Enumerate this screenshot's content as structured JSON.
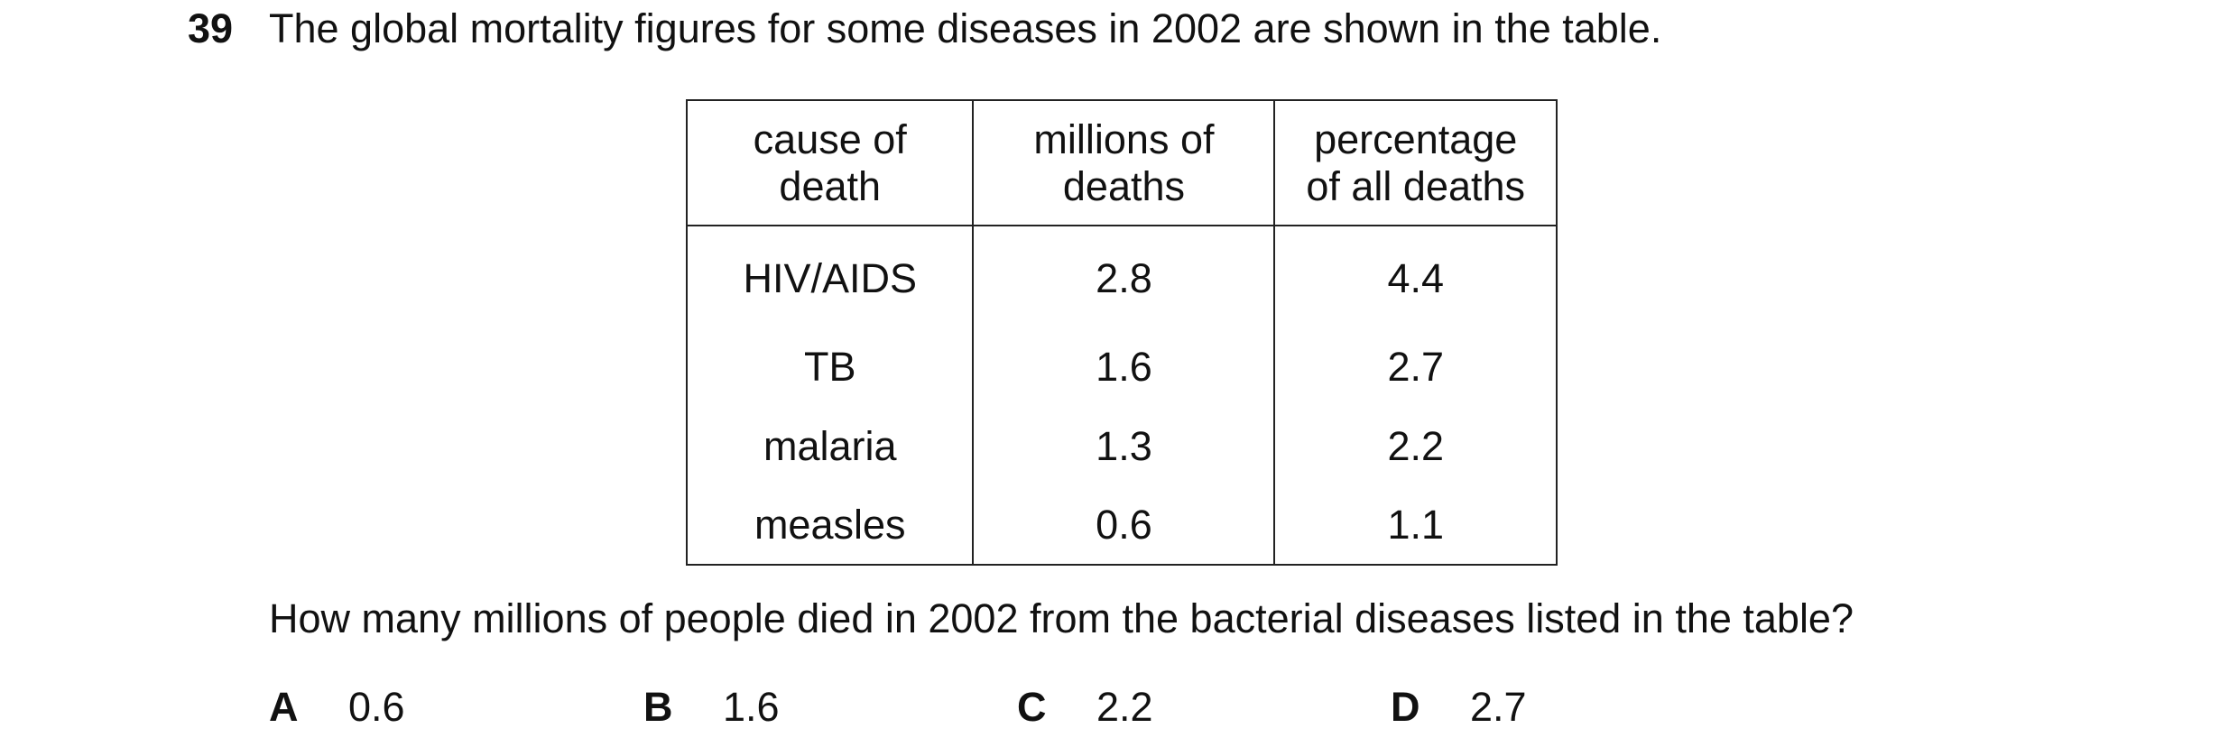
{
  "question": {
    "number": "39",
    "stem": "The global mortality figures for some diseases in 2002 are shown in the table.",
    "prompt": "How many millions of people died in 2002 from the bacterial diseases listed in the table?"
  },
  "table": {
    "headers": [
      [
        "cause of",
        "death"
      ],
      [
        "millions of",
        "deaths"
      ],
      [
        "percentage",
        "of all deaths"
      ]
    ],
    "rows": [
      [
        "HIV/AIDS",
        "2.8",
        "4.4"
      ],
      [
        "TB",
        "1.6",
        "2.7"
      ],
      [
        "malaria",
        "1.3",
        "2.2"
      ],
      [
        "measles",
        "0.6",
        "1.1"
      ]
    ]
  },
  "options": [
    {
      "letter": "A",
      "value": "0.6"
    },
    {
      "letter": "B",
      "value": "1.6"
    },
    {
      "letter": "C",
      "value": "2.2"
    },
    {
      "letter": "D",
      "value": "2.7"
    }
  ]
}
